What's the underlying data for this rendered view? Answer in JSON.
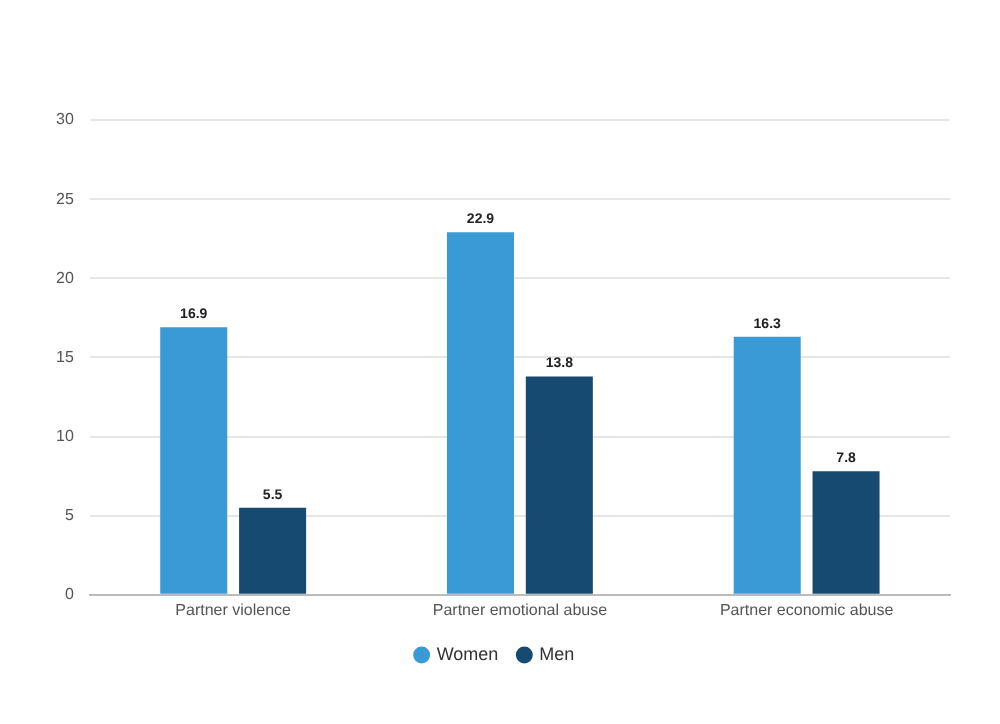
{
  "chart_data": {
    "type": "bar",
    "categories": [
      "Partner violence",
      "Partner emotional abuse",
      "Partner economic abuse"
    ],
    "series": [
      {
        "name": "Women",
        "color": "#3a9ad6",
        "values": [
          16.9,
          22.9,
          16.3
        ]
      },
      {
        "name": "Men",
        "color": "#174a70",
        "values": [
          5.5,
          13.8,
          7.8
        ]
      }
    ],
    "ylim": [
      0,
      30
    ],
    "yticks": [
      0,
      5,
      10,
      15,
      20,
      25,
      30
    ],
    "grid": "y",
    "legend": "bottom",
    "data_labels": true
  }
}
